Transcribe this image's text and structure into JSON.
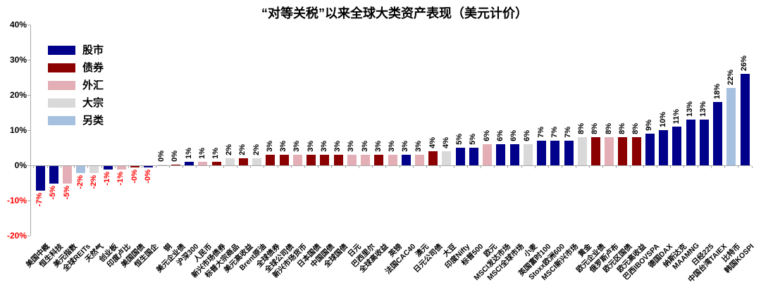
{
  "chart_data": {
    "type": "bar",
    "title": "“对等关税”以来全球大类资产表现（美元计价）",
    "xlabel": "",
    "ylabel": "",
    "ylim": [
      -20,
      40
    ],
    "grid": false,
    "legend_position": "top-left",
    "negative_label_color": "#ff0000",
    "axis_color": "#a6a6a6",
    "colors": {
      "stock": "#00008b",
      "bond": "#8b0000",
      "fx": "#e3aeb5",
      "commodity": "#d9d9d9",
      "alt": "#a6c0e0"
    },
    "legend": [
      {
        "label": "股市",
        "key": "stock"
      },
      {
        "label": "债券",
        "key": "bond"
      },
      {
        "label": "外汇",
        "key": "fx"
      },
      {
        "label": "大宗",
        "key": "commodity"
      },
      {
        "label": "另类",
        "key": "alt"
      }
    ],
    "y_ticks": [
      {
        "label": "40%",
        "value": 40
      },
      {
        "label": "30%",
        "value": 30
      },
      {
        "label": "20%",
        "value": 20
      },
      {
        "label": "10%",
        "value": 10
      },
      {
        "label": "0%",
        "value": 0
      },
      {
        "label": "-10%",
        "value": -10
      },
      {
        "label": "-20%",
        "value": -20
      }
    ],
    "bars": [
      {
        "name": "美国中概",
        "value": -7,
        "label": "-7%",
        "type": "stock"
      },
      {
        "name": "恒生科技",
        "value": -5,
        "label": "-5%",
        "type": "stock"
      },
      {
        "name": "美元指数",
        "value": -5,
        "label": "-5%",
        "type": "fx"
      },
      {
        "name": "全球REITs",
        "value": -2,
        "label": "-2%",
        "type": "alt"
      },
      {
        "name": "天然气",
        "value": -2,
        "label": "-2%",
        "type": "commodity"
      },
      {
        "name": "创业板",
        "value": -1,
        "label": "-1%",
        "type": "stock"
      },
      {
        "name": "印度卢比",
        "value": -1,
        "label": "-1%",
        "type": "fx"
      },
      {
        "name": "美国国债",
        "value": 0,
        "label": "-0%",
        "type": "bond"
      },
      {
        "name": "恒生国企",
        "value": 0,
        "label": "-0%",
        "type": "stock"
      },
      {
        "name": "铜",
        "value": 0,
        "label": "0%",
        "type": "commodity"
      },
      {
        "name": "美元企业债",
        "value": 0,
        "label": "0%",
        "type": "bond"
      },
      {
        "name": "沪深300",
        "value": 1,
        "label": "1%",
        "type": "stock"
      },
      {
        "name": "人民币",
        "value": 1,
        "label": "1%",
        "type": "fx"
      },
      {
        "name": "新兴市场债券",
        "value": 1,
        "label": "1%",
        "type": "bond"
      },
      {
        "name": "标普大宗商品",
        "value": 2,
        "label": "2%",
        "type": "commodity"
      },
      {
        "name": "美元高收益",
        "value": 2,
        "label": "2%",
        "type": "bond"
      },
      {
        "name": "Brent原油",
        "value": 2,
        "label": "2%",
        "type": "commodity"
      },
      {
        "name": "全球债券",
        "value": 3,
        "label": "3%",
        "type": "bond"
      },
      {
        "name": "全球公司债",
        "value": 3,
        "label": "3%",
        "type": "bond"
      },
      {
        "name": "新兴市场货币",
        "value": 3,
        "label": "3%",
        "type": "fx"
      },
      {
        "name": "日本国债",
        "value": 3,
        "label": "3%",
        "type": "bond"
      },
      {
        "name": "中国国债",
        "value": 3,
        "label": "3%",
        "type": "bond"
      },
      {
        "name": "全球国债",
        "value": 3,
        "label": "3%",
        "type": "bond"
      },
      {
        "name": "日元",
        "value": 3,
        "label": "3%",
        "type": "fx"
      },
      {
        "name": "巴西里尔",
        "value": 3,
        "label": "3%",
        "type": "fx"
      },
      {
        "name": "全球高收益",
        "value": 3,
        "label": "3%",
        "type": "bond"
      },
      {
        "name": "英镑",
        "value": 3,
        "label": "3%",
        "type": "fx"
      },
      {
        "name": "法国CAC40",
        "value": 3,
        "label": "3%",
        "type": "stock"
      },
      {
        "name": "澳元",
        "value": 3,
        "label": "3%",
        "type": "fx"
      },
      {
        "name": "日元公司债",
        "value": 4,
        "label": "4%",
        "type": "bond"
      },
      {
        "name": "大豆",
        "value": 4,
        "label": "4%",
        "type": "commodity"
      },
      {
        "name": "印度Nifty",
        "value": 5,
        "label": "5%",
        "type": "stock"
      },
      {
        "name": "标普500",
        "value": 5,
        "label": "5%",
        "type": "stock"
      },
      {
        "name": "欧元",
        "value": 6,
        "label": "6%",
        "type": "fx"
      },
      {
        "name": "MSCI发达市场",
        "value": 6,
        "label": "6%",
        "type": "stock"
      },
      {
        "name": "MSCI全球市场",
        "value": 6,
        "label": "6%",
        "type": "stock"
      },
      {
        "name": "小麦",
        "value": 6,
        "label": "6%",
        "type": "commodity"
      },
      {
        "name": "英国富时100",
        "value": 7,
        "label": "7%",
        "type": "stock"
      },
      {
        "name": "Stoxx欧洲600",
        "value": 7,
        "label": "7%",
        "type": "stock"
      },
      {
        "name": "MSCI新兴市场",
        "value": 7,
        "label": "7%",
        "type": "stock"
      },
      {
        "name": "黄金",
        "value": 8,
        "label": "8%",
        "type": "commodity"
      },
      {
        "name": "欧元企业债",
        "value": 8,
        "label": "8%",
        "type": "bond"
      },
      {
        "name": "俄罗斯卢布",
        "value": 8,
        "label": "8%",
        "type": "fx"
      },
      {
        "name": "欧元区国债",
        "value": 8,
        "label": "8%",
        "type": "bond"
      },
      {
        "name": "欧元高收益",
        "value": 8,
        "label": "8%",
        "type": "bond"
      },
      {
        "name": "巴西IBOVSPA",
        "value": 9,
        "label": "9%",
        "type": "stock"
      },
      {
        "name": "德国DAX",
        "value": 10,
        "label": "10%",
        "type": "stock"
      },
      {
        "name": "纳斯达克",
        "value": 11,
        "label": "11%",
        "type": "stock"
      },
      {
        "name": "MAAMNG",
        "value": 13,
        "label": "13%",
        "type": "stock"
      },
      {
        "name": "日经225",
        "value": 13,
        "label": "13%",
        "type": "stock"
      },
      {
        "name": "中国台湾TAIEX",
        "value": 18,
        "label": "18%",
        "type": "stock"
      },
      {
        "name": "比特币",
        "value": 22,
        "label": "22%",
        "type": "alt"
      },
      {
        "name": "韩国KOSPI",
        "value": 26,
        "label": "26%",
        "type": "stock"
      }
    ]
  }
}
